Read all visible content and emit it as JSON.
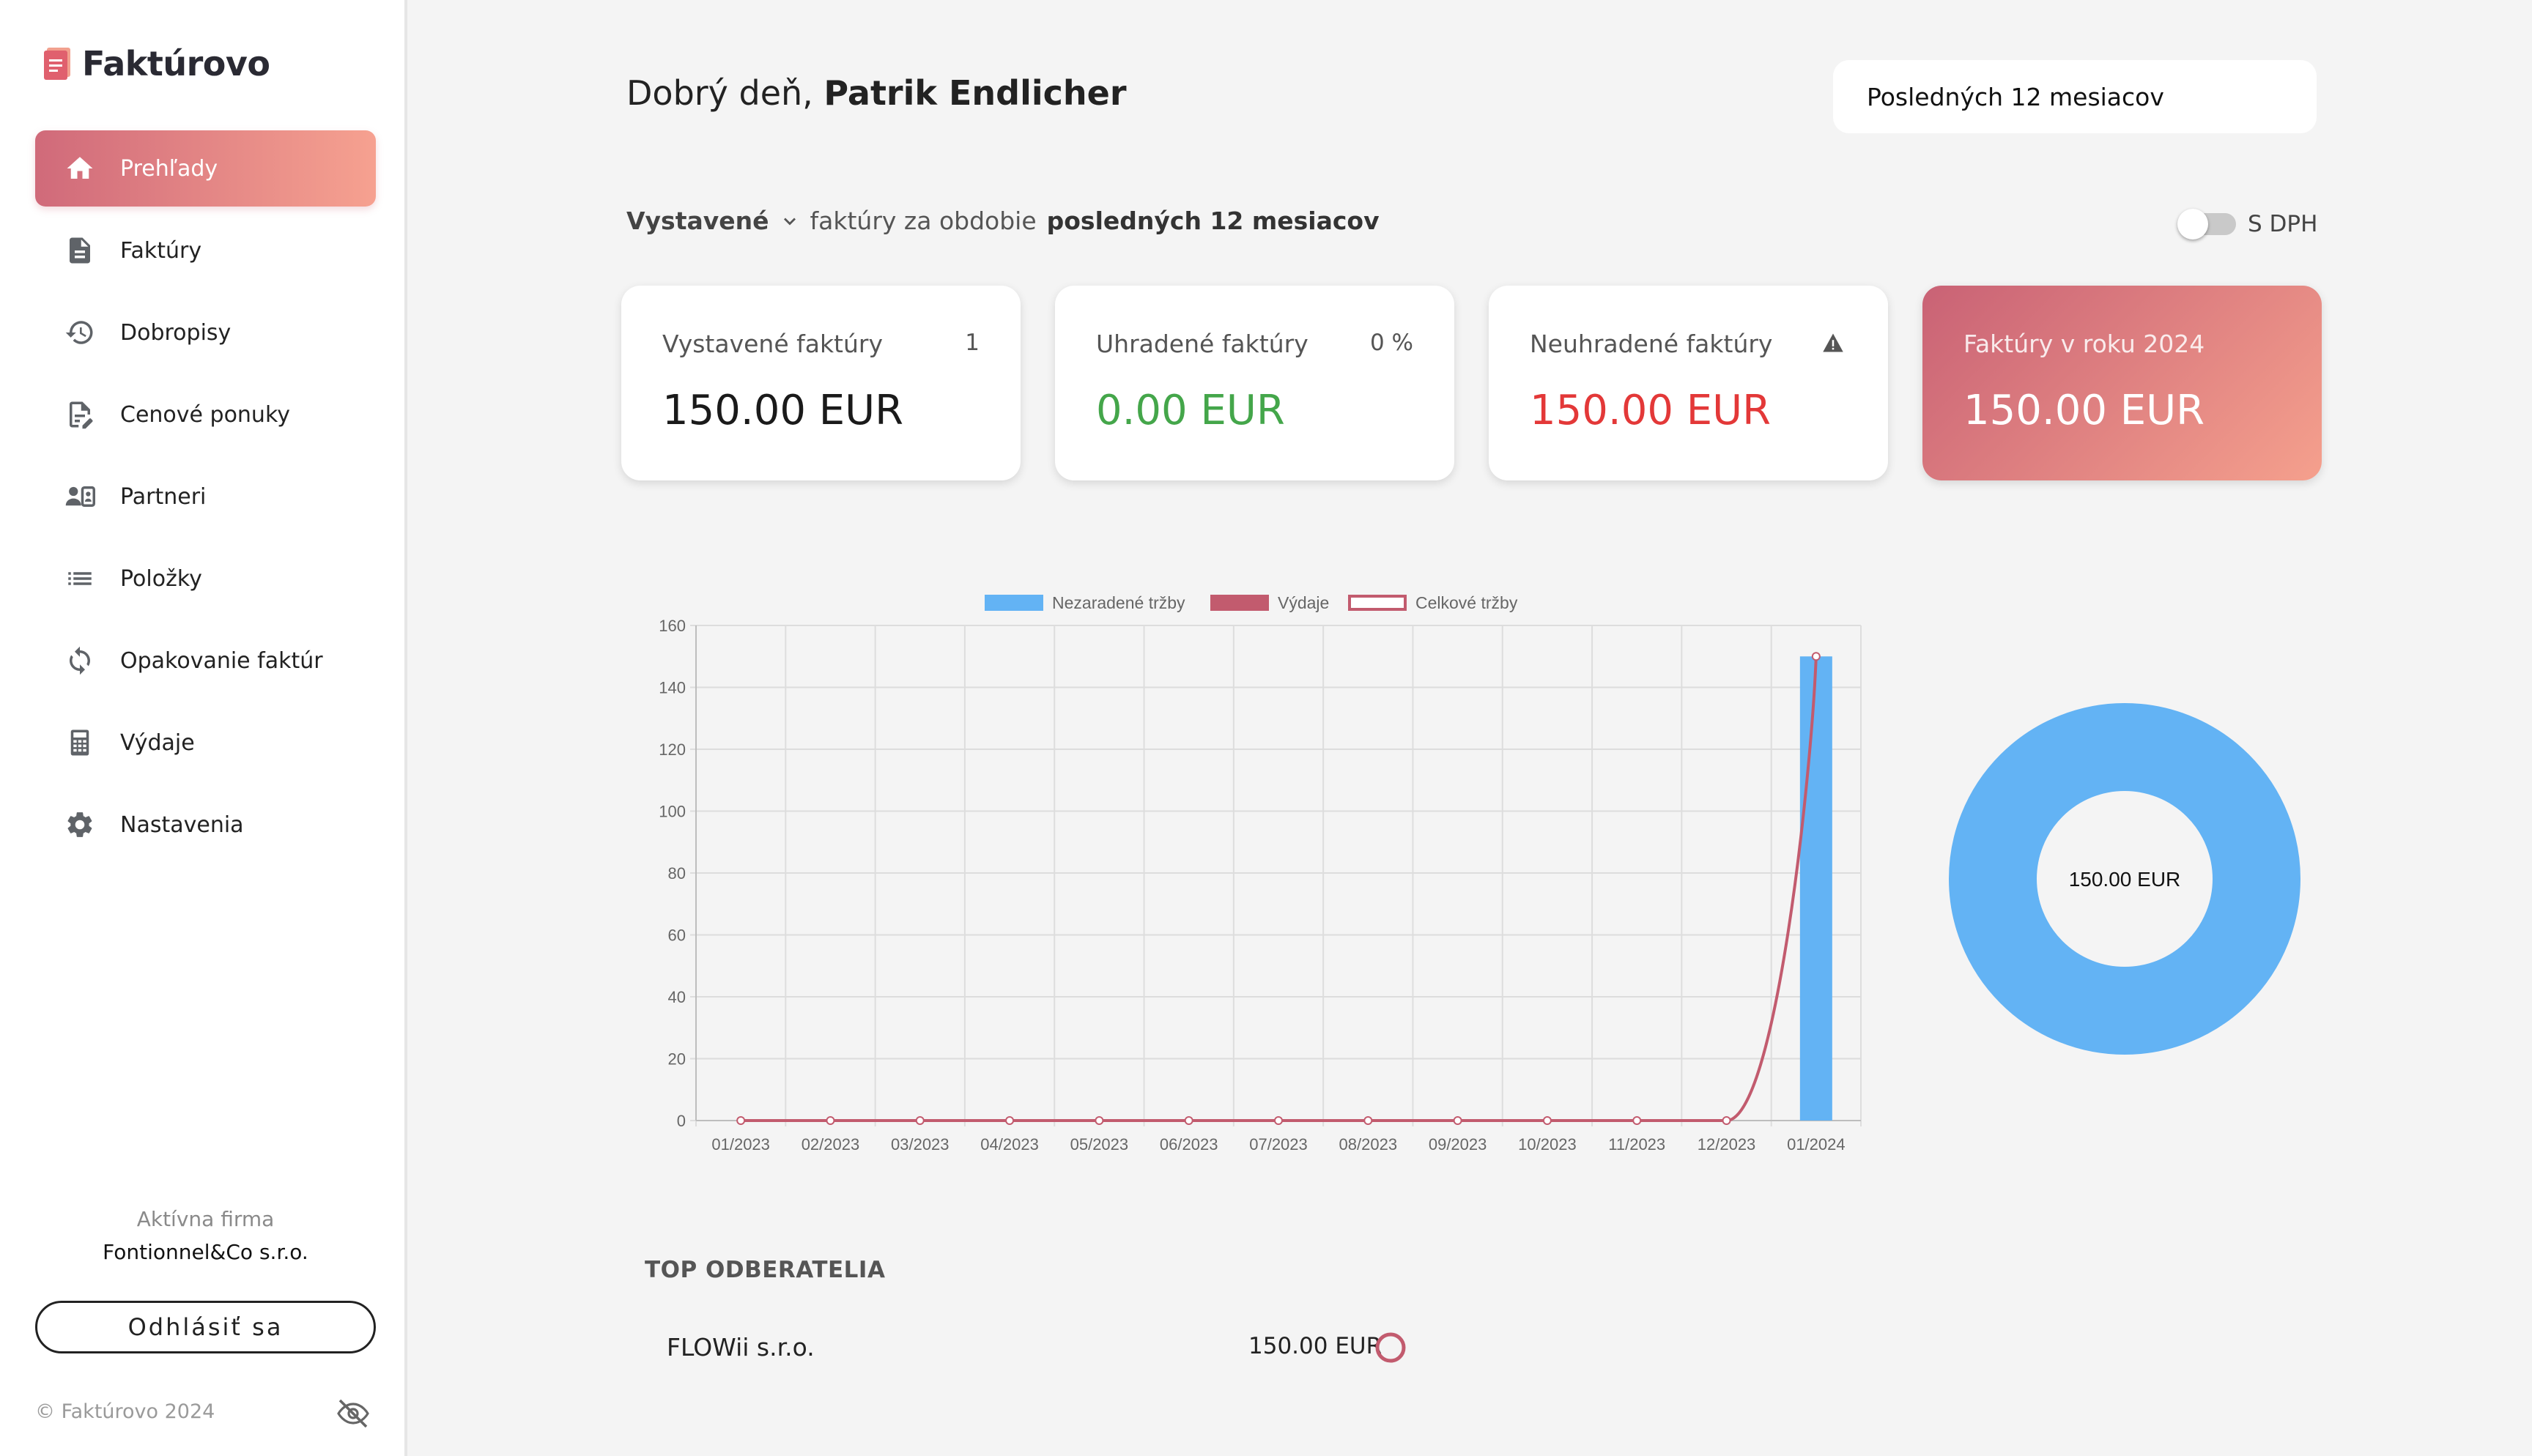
{
  "app": {
    "name": "Faktúrovo"
  },
  "sidebar": {
    "items": [
      {
        "label": "Prehľady",
        "icon": "home-icon",
        "active": true
      },
      {
        "label": "Faktúry",
        "icon": "invoice-icon"
      },
      {
        "label": "Dobropisy",
        "icon": "restore-icon"
      },
      {
        "label": "Cenové ponuky",
        "icon": "edit-document-icon"
      },
      {
        "label": "Partneri",
        "icon": "partners-icon"
      },
      {
        "label": "Položky",
        "icon": "list-icon"
      },
      {
        "label": "Opakovanie faktúr",
        "icon": "repeat-icon"
      },
      {
        "label": "Výdaje",
        "icon": "calculator-icon"
      },
      {
        "label": "Nastavenia",
        "icon": "gear-icon"
      }
    ],
    "company_label": "Aktívna firma",
    "company_name": "Fontionnel&Co s.r.o.",
    "logout_label": "Odhlásiť sa",
    "copyright": "© Faktúrovo 2024"
  },
  "header": {
    "greeting_prefix": "Dobrý deň,",
    "user_name": "Patrik Endlicher",
    "period": "Posledných 12 mesiacov"
  },
  "filter": {
    "type": "Vystavené",
    "text": "faktúry za obdobie",
    "period": "posledných 12 mesiacov",
    "vat_label": "S DPH",
    "vat_enabled": false
  },
  "cards": [
    {
      "title": "Vystavené faktúry",
      "extra": "1",
      "value": "150.00 EUR"
    },
    {
      "title": "Uhradené faktúry",
      "extra": "0 %",
      "value": "0.00 EUR"
    },
    {
      "title": "Neuhradené faktúry",
      "extra_icon": "warning-icon",
      "value": "150.00 EUR"
    },
    {
      "title": "Faktúry v roku 2024",
      "value": "150.00 EUR"
    }
  ],
  "colors": {
    "accent_start": "#d06a7a",
    "accent_end": "#f6a190",
    "green": "#44a64a",
    "red": "#e33838",
    "bar_blue": "#63b3f4",
    "line_red": "#c25b6e"
  },
  "chart_data": [
    {
      "type": "bar",
      "categories": [
        "01/2023",
        "02/2023",
        "03/2023",
        "04/2023",
        "05/2023",
        "06/2023",
        "07/2023",
        "08/2023",
        "09/2023",
        "10/2023",
        "11/2023",
        "12/2023",
        "01/2024"
      ],
      "series": [
        {
          "name": "Nezaradené tržby",
          "type": "bar",
          "color": "#63b3f4",
          "values": [
            0,
            0,
            0,
            0,
            0,
            0,
            0,
            0,
            0,
            0,
            0,
            0,
            150
          ]
        },
        {
          "name": "Výdaje",
          "type": "line",
          "color": "#c25b6e",
          "values": [
            0,
            0,
            0,
            0,
            0,
            0,
            0,
            0,
            0,
            0,
            0,
            0,
            150
          ]
        },
        {
          "name": "Celkové tržby",
          "type": "line-outline",
          "color": "#c25b6e",
          "values": [
            0,
            0,
            0,
            0,
            0,
            0,
            0,
            0,
            0,
            0,
            0,
            0,
            150
          ]
        }
      ],
      "ylim": [
        0,
        160
      ],
      "yticks": [
        0,
        20,
        40,
        60,
        80,
        100,
        120,
        140,
        160
      ],
      "grid": true,
      "legend": "top"
    },
    {
      "type": "pie",
      "variant": "donut",
      "values": [
        150
      ],
      "center_label": "150.00 EUR",
      "color": "#63b3f4"
    }
  ],
  "top_customers": {
    "title": "TOP ODBERATELIA",
    "rows": [
      {
        "name": "FLOWii s.r.o.",
        "amount": "150.00 EUR"
      }
    ]
  }
}
